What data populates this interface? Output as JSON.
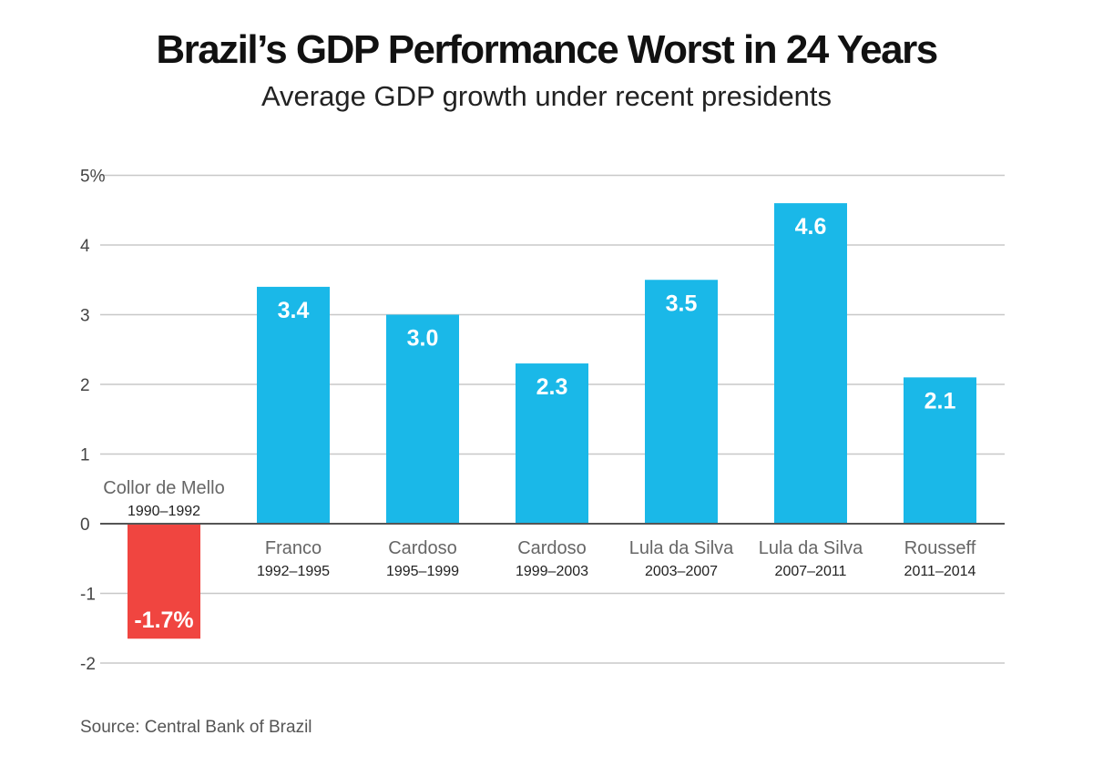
{
  "title": "Brazil’s GDP Performance Worst in 24 Years",
  "subtitle": "Average GDP growth under recent presidents",
  "source": "Source: Central Bank of Brazil",
  "colors": {
    "positive": "#1ab8e8",
    "negative": "#f04540",
    "grid": "#c8c8c8",
    "zero_line": "#555555"
  },
  "chart_data": {
    "type": "bar",
    "categories": [
      {
        "name": "Collor de Mello",
        "years": "1990–1992"
      },
      {
        "name": "Franco",
        "years": "1992–1995"
      },
      {
        "name": "Cardoso",
        "years": "1995–1999"
      },
      {
        "name": "Cardoso",
        "years": "1999–2003"
      },
      {
        "name": "Lula da Silva",
        "years": "2003–2007"
      },
      {
        "name": "Lula da Silva",
        "years": "2007–2011"
      },
      {
        "name": "Rousseff",
        "years": "2011–2014"
      }
    ],
    "values": [
      -1.65,
      3.4,
      3.0,
      2.3,
      3.5,
      4.6,
      2.1
    ],
    "data_labels": [
      "-1.7%",
      "3.4",
      "3.0",
      "2.3",
      "3.5",
      "4.6",
      "2.1"
    ],
    "y_ticks": [
      {
        "value": 5,
        "label": "5%"
      },
      {
        "value": 4,
        "label": "4"
      },
      {
        "value": 3,
        "label": "3"
      },
      {
        "value": 2,
        "label": "2"
      },
      {
        "value": 1,
        "label": "1"
      },
      {
        "value": 0,
        "label": "0"
      },
      {
        "value": -1,
        "label": "-1"
      },
      {
        "value": -2,
        "label": "-2"
      }
    ],
    "ylim": [
      -2,
      5
    ],
    "xlabel": "",
    "ylabel": "",
    "grid": true,
    "legend": "none"
  }
}
